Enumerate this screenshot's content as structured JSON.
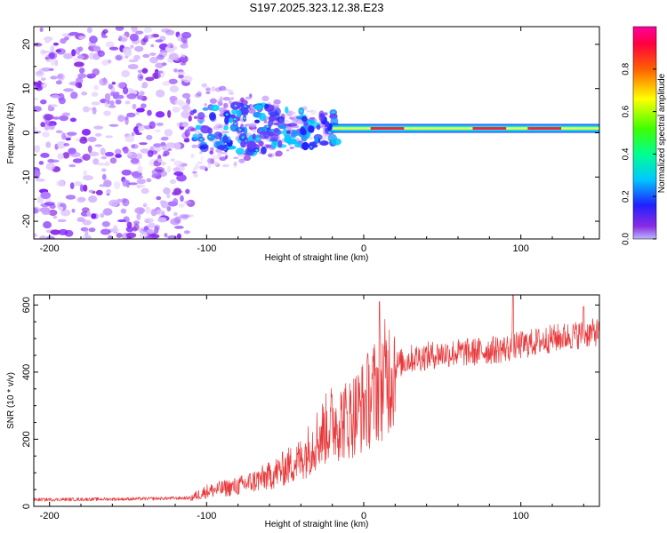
{
  "title": "S197.2025.323.12.38.E23",
  "chart_data": [
    {
      "type": "heatmap",
      "name": "spectrogram",
      "xlabel": "Height of straight line (km)",
      "ylabel": "Frequency (Hz)",
      "xlim": [
        -210,
        150
      ],
      "ylim": [
        -24,
        24
      ],
      "xticks": [
        -200,
        -100,
        0,
        100
      ],
      "yticks": [
        -20,
        -10,
        0,
        10,
        20
      ],
      "colorbar": {
        "label": "Normalized spectral amplitude",
        "range": [
          0,
          1
        ],
        "ticks": [
          "0.0",
          "0.2",
          "0.4",
          "0.6",
          "0.8"
        ]
      },
      "features": [
        {
          "region": "noise",
          "x_range": [
            -210,
            -110
          ],
          "freq_range": [
            -24,
            24
          ],
          "amplitude": "low"
        },
        {
          "region": "transition",
          "x_range": [
            -110,
            -20
          ],
          "freq_range": [
            -8,
            8
          ],
          "amplitude": "medium"
        },
        {
          "region": "carrier",
          "x_range": [
            -20,
            150
          ],
          "freq_center": 1,
          "freq_width": 2,
          "amplitude": "high"
        }
      ]
    },
    {
      "type": "line",
      "name": "snr",
      "xlabel": "Height of straight line (km)",
      "ylabel": "SNR (10 * v/v)",
      "xlim": [
        -210,
        150
      ],
      "ylim": [
        0,
        630
      ],
      "xticks": [
        -200,
        -100,
        0,
        100
      ],
      "yticks": [
        0,
        200,
        400,
        600
      ],
      "color": "#e8383a",
      "envelope": {
        "x": [
          -210,
          -150,
          -110,
          -100,
          -80,
          -60,
          -40,
          -30,
          -20,
          -10,
          0,
          10,
          20,
          30,
          50,
          70,
          90,
          100,
          120,
          150
        ],
        "y": [
          20,
          22,
          25,
          45,
          60,
          90,
          140,
          200,
          250,
          260,
          300,
          360,
          420,
          440,
          455,
          460,
          470,
          480,
          500,
          520
        ]
      },
      "spikes": [
        {
          "x": 10,
          "y": 610
        },
        {
          "x": 95,
          "y": 630
        },
        {
          "x": 140,
          "y": 595
        }
      ]
    }
  ]
}
